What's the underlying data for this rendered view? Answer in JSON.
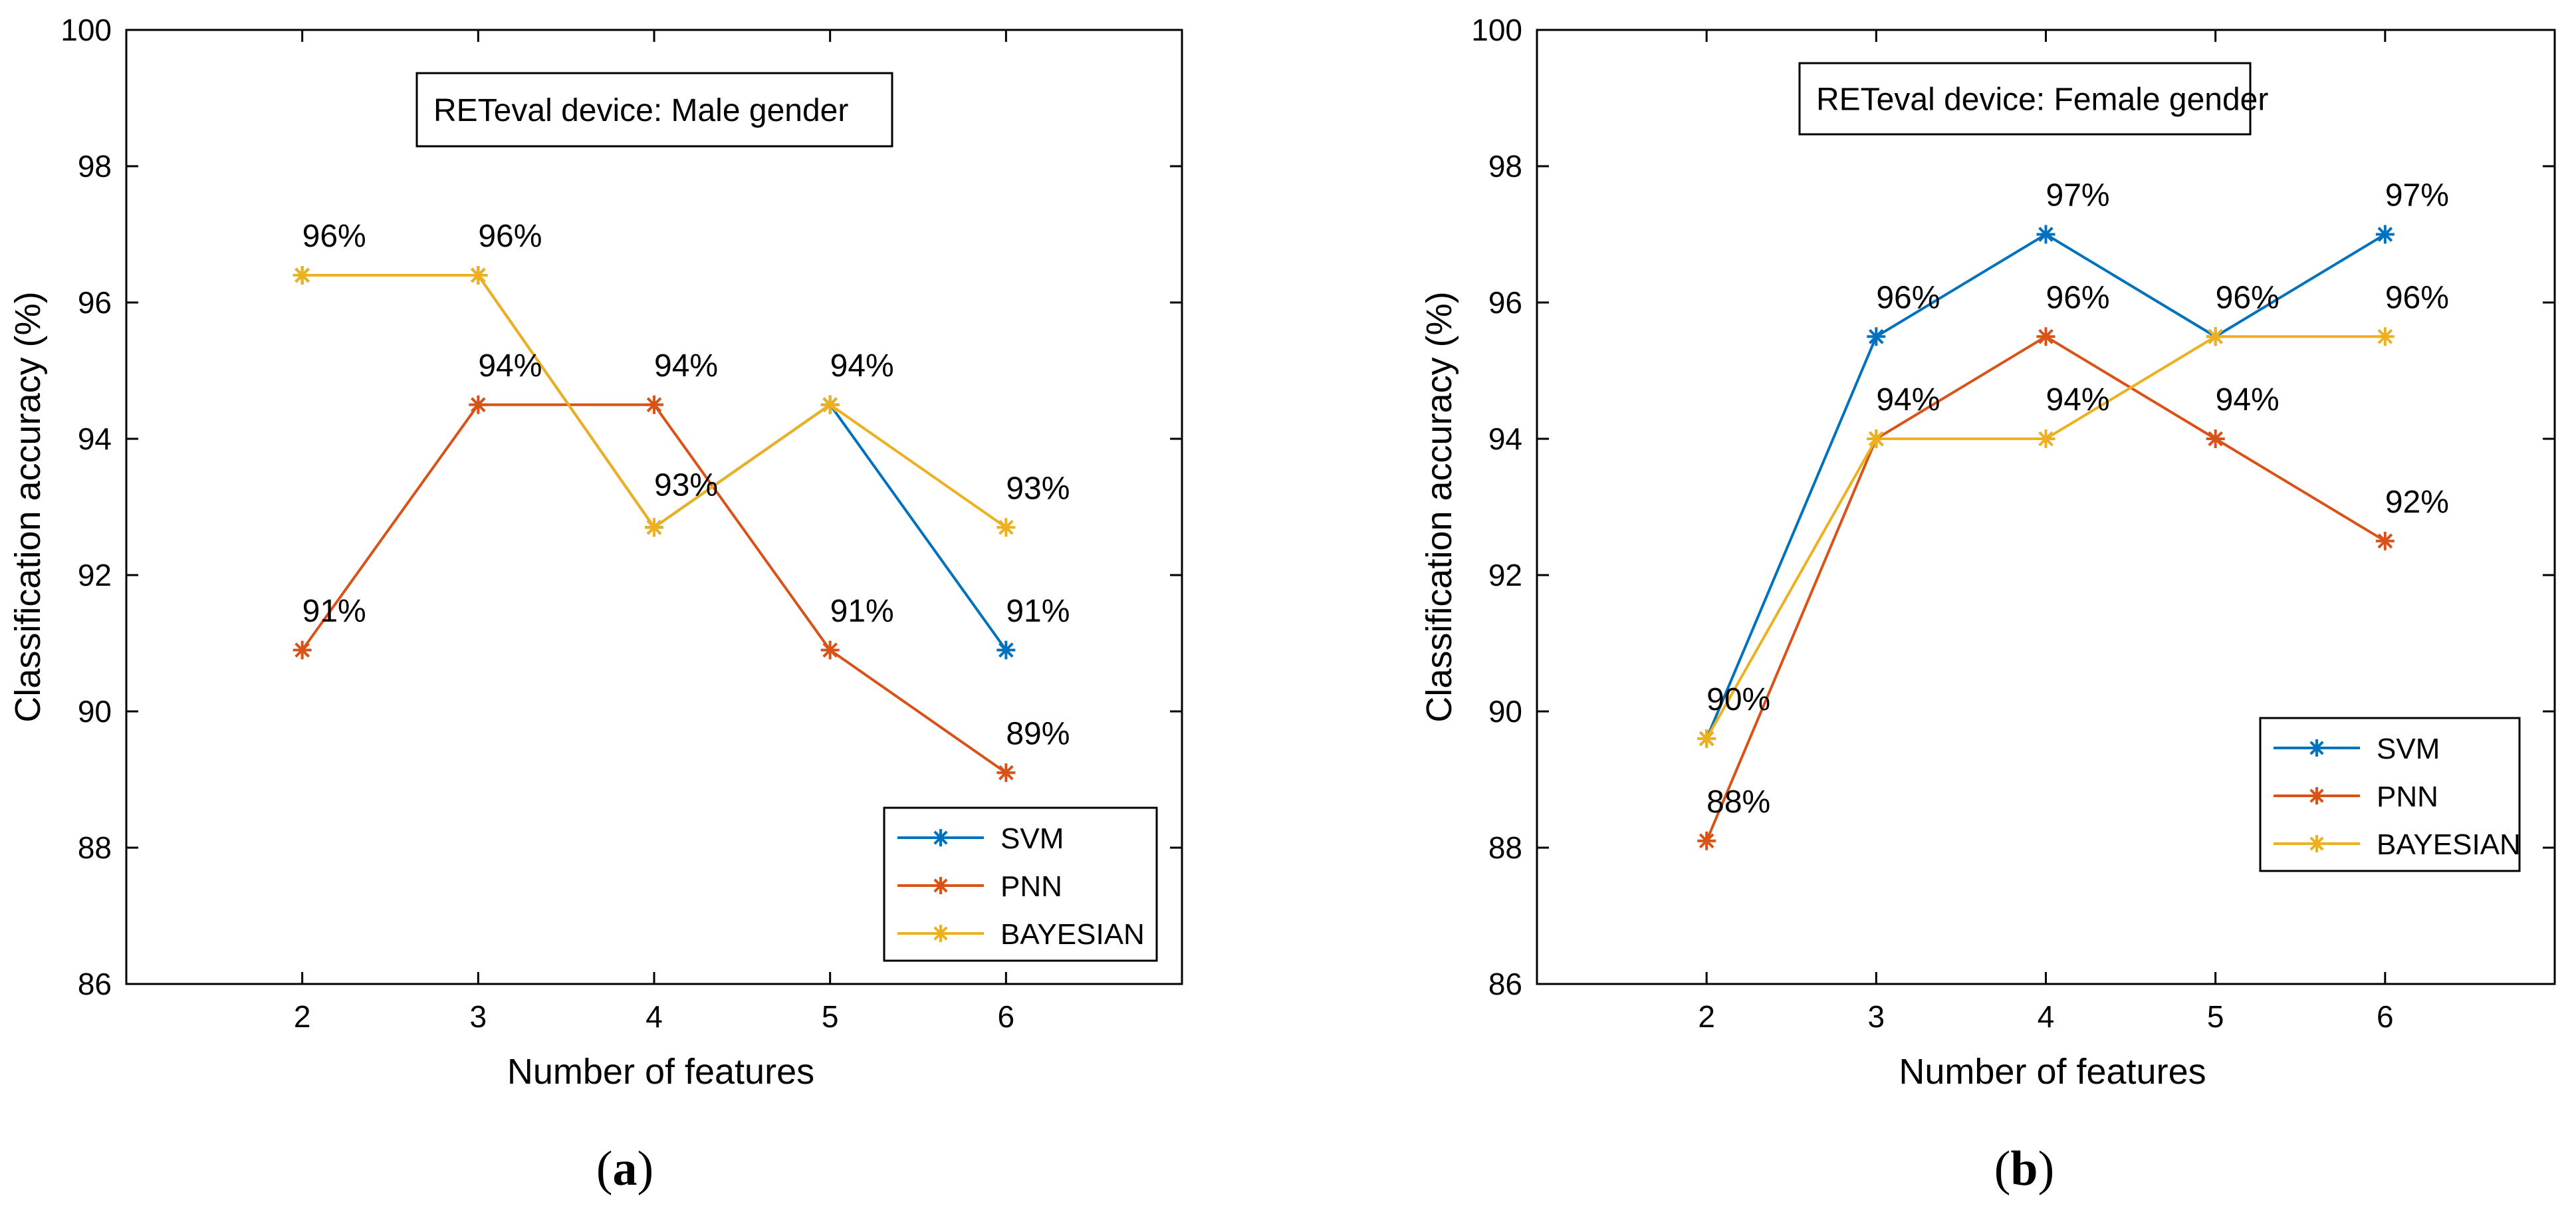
{
  "colors": {
    "svm": "#0072BD",
    "pnn": "#D95319",
    "bayesian": "#EDB120",
    "axis": "#000000",
    "background": "#ffffff"
  },
  "chart_data": [
    {
      "panel_label": "(a)",
      "type": "line",
      "annotation": "RETeval device: Male gender",
      "xlabel": "Number of features",
      "ylabel": "Classification accuracy (%)",
      "xlim": [
        1,
        7
      ],
      "ylim": [
        86,
        100
      ],
      "xticks": [
        2,
        3,
        4,
        5,
        6
      ],
      "yticks": [
        86,
        88,
        90,
        92,
        94,
        96,
        98,
        100
      ],
      "grid": false,
      "legend_position": "bottom-right",
      "marker": "asterisk",
      "x": [
        2,
        3,
        4,
        5,
        6
      ],
      "series": [
        {
          "name": "SVM",
          "color_key": "svm",
          "values": [
            96.4,
            96.4,
            92.7,
            94.5,
            90.9
          ]
        },
        {
          "name": "PNN",
          "color_key": "pnn",
          "values": [
            90.9,
            94.5,
            94.5,
            90.9,
            89.1
          ]
        },
        {
          "name": "BAYESIAN",
          "color_key": "bayesian",
          "values": [
            96.4,
            96.4,
            92.7,
            94.5,
            92.7
          ]
        }
      ],
      "data_labels": [
        {
          "text": "96%",
          "x": 2,
          "y": 96.4
        },
        {
          "text": "96%",
          "x": 3,
          "y": 96.4
        },
        {
          "text": "94%",
          "x": 3,
          "y": 94.5
        },
        {
          "text": "94%",
          "x": 4,
          "y": 94.5
        },
        {
          "text": "93%",
          "x": 4,
          "y": 92.7
        },
        {
          "text": "94%",
          "x": 5,
          "y": 94.5
        },
        {
          "text": "91%",
          "x": 2,
          "y": 90.9
        },
        {
          "text": "91%",
          "x": 5,
          "y": 90.9
        },
        {
          "text": "93%",
          "x": 6,
          "y": 92.7
        },
        {
          "text": "91%",
          "x": 6,
          "y": 90.9
        },
        {
          "text": "89%",
          "x": 6,
          "y": 89.1
        }
      ]
    },
    {
      "panel_label": "(b)",
      "type": "line",
      "annotation": "RETeval device: Female gender",
      "xlabel": "Number of features",
      "ylabel": "Classification accuracy (%)",
      "xlim": [
        1,
        7
      ],
      "ylim": [
        86,
        100
      ],
      "xticks": [
        2,
        3,
        4,
        5,
        6
      ],
      "yticks": [
        86,
        88,
        90,
        92,
        94,
        96,
        98,
        100
      ],
      "grid": false,
      "legend_position": "right",
      "marker": "asterisk",
      "x": [
        2,
        3,
        4,
        5,
        6
      ],
      "series": [
        {
          "name": "SVM",
          "color_key": "svm",
          "values": [
            89.6,
            95.5,
            97.0,
            95.5,
            97.0
          ]
        },
        {
          "name": "PNN",
          "color_key": "pnn",
          "values": [
            88.1,
            94.0,
            95.5,
            94.0,
            92.5
          ]
        },
        {
          "name": "BAYESIAN",
          "color_key": "bayesian",
          "values": [
            89.6,
            94.0,
            94.0,
            95.5,
            95.5
          ]
        }
      ],
      "data_labels": [
        {
          "text": "90%",
          "x": 2,
          "y": 89.6
        },
        {
          "text": "88%",
          "x": 2,
          "y": 88.1
        },
        {
          "text": "96%",
          "x": 3,
          "y": 95.5
        },
        {
          "text": "94%",
          "x": 3,
          "y": 94.0
        },
        {
          "text": "97%",
          "x": 4,
          "y": 97.0
        },
        {
          "text": "96%",
          "x": 4,
          "y": 95.5
        },
        {
          "text": "94%",
          "x": 4,
          "y": 94.0
        },
        {
          "text": "96%",
          "x": 5,
          "y": 95.5
        },
        {
          "text": "94%",
          "x": 5,
          "y": 94.0
        },
        {
          "text": "97%",
          "x": 6,
          "y": 97.0
        },
        {
          "text": "96%",
          "x": 6,
          "y": 95.5
        },
        {
          "text": "92%",
          "x": 6,
          "y": 92.5
        }
      ]
    }
  ]
}
